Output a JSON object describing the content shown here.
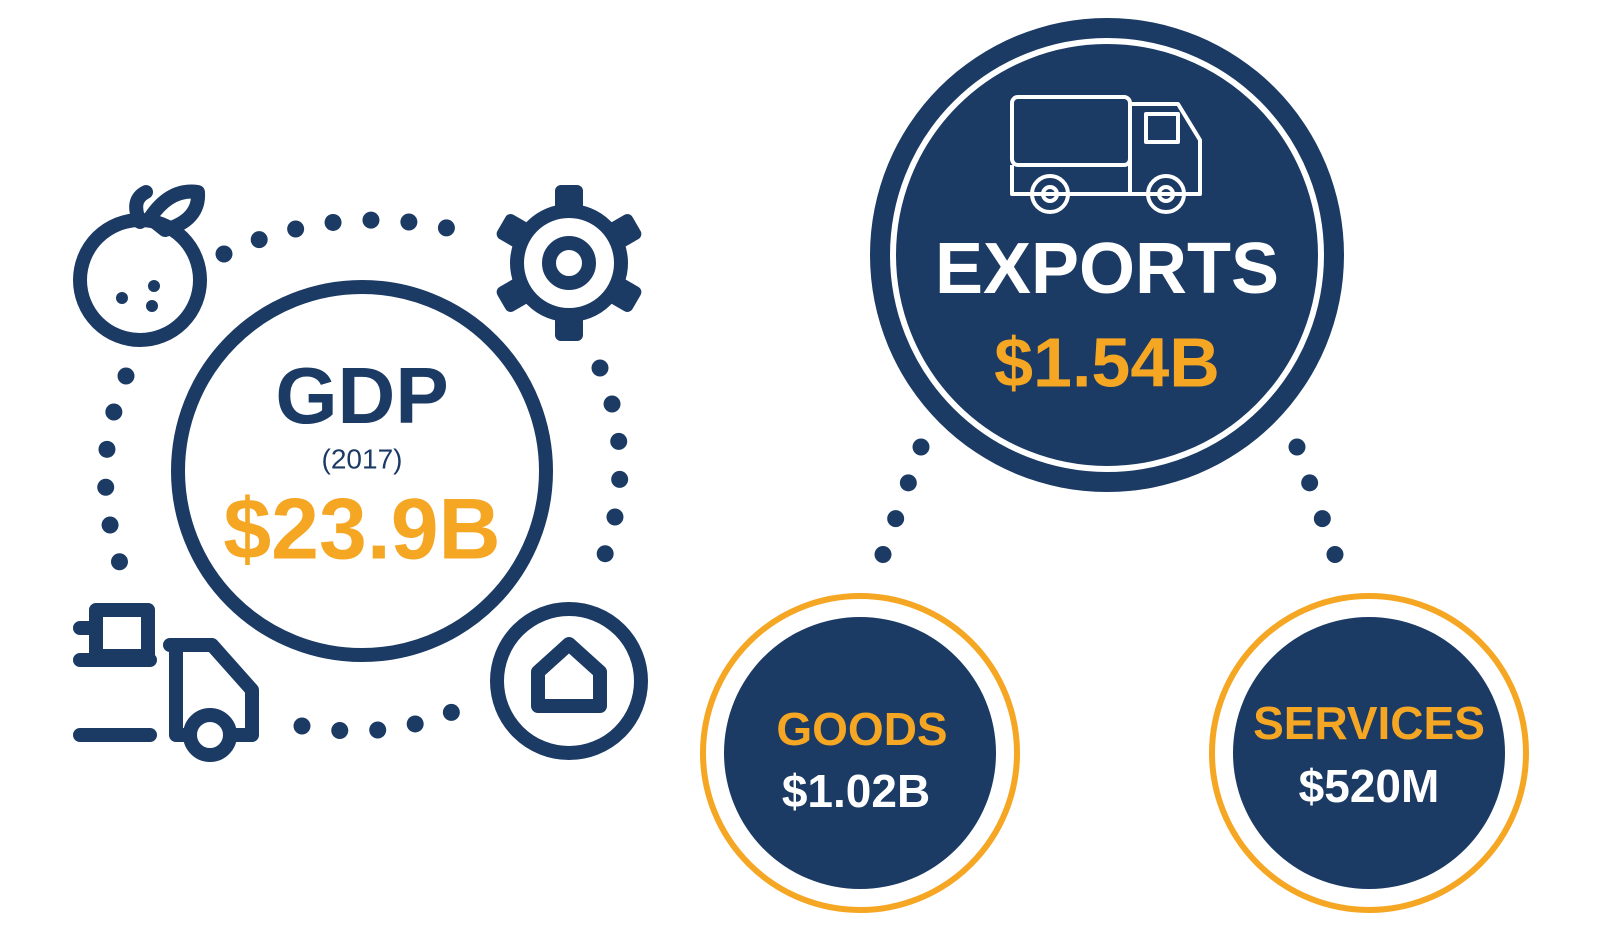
{
  "gdp": {
    "label": "GDP",
    "year": "(2017)",
    "value": "$23.9B"
  },
  "exports": {
    "label": "EXPORTS",
    "value": "$1.54B",
    "goods": {
      "label": "GOODS",
      "value": "$1.02B"
    },
    "services": {
      "label": "SERVICES",
      "value": "$520M"
    }
  }
}
